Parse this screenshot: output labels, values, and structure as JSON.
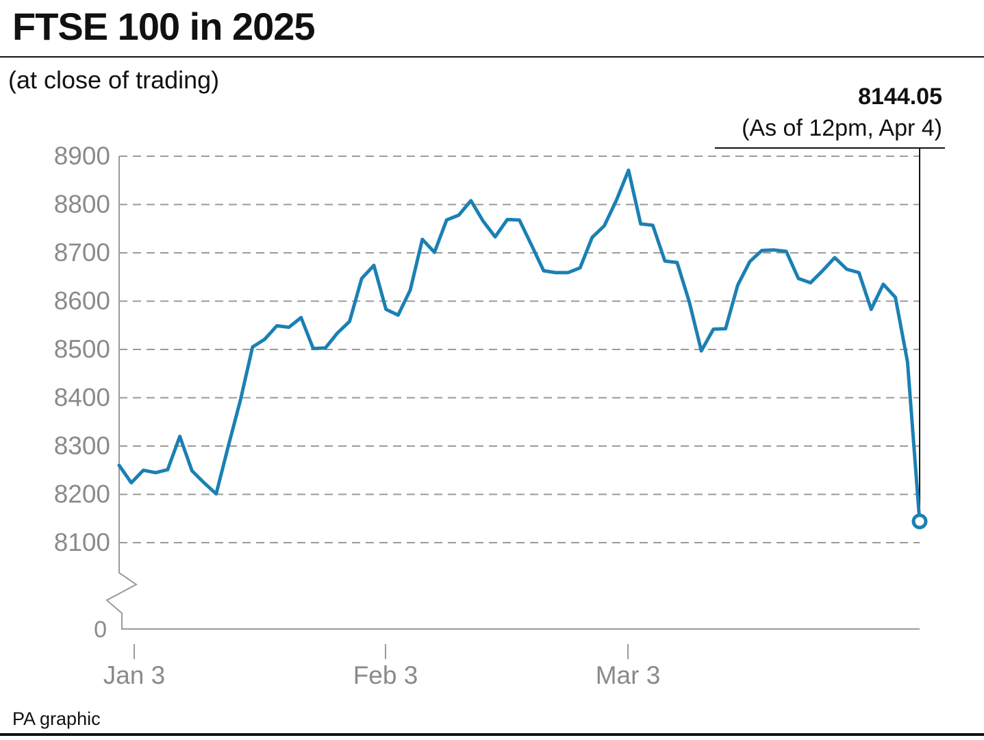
{
  "title": "FTSE 100 in 2025",
  "subtitle": "(at close of trading)",
  "source": "PA graphic",
  "colors": {
    "line": "#1b80b3",
    "grid": "#9a9a9a",
    "axis_text": "#8a8a8a",
    "text": "#111111"
  },
  "chart_data": {
    "type": "line",
    "title": "FTSE 100 in 2025",
    "subtitle": "(at close of trading)",
    "xlabel": "",
    "ylabel": "",
    "ylim": [
      8100,
      8900
    ],
    "y_ticks": [
      "8900",
      "8800",
      "8700",
      "8600",
      "8500",
      "8400",
      "8300",
      "8200",
      "8100"
    ],
    "y_zero_label": "0",
    "axis_break": true,
    "grid": true,
    "x_ticks": [
      "Jan 3",
      "Feb 3",
      "Mar 3"
    ],
    "annotation": {
      "value": "8144.05",
      "note": "(As of 12pm, Apr 4)"
    },
    "series": [
      {
        "values": [
          8260,
          8224,
          8250,
          8245,
          8251,
          8320,
          8249,
          8224,
          8201,
          8300,
          8395,
          8505,
          8521,
          8549,
          8546,
          8566,
          8502,
          8503,
          8534,
          8558,
          8647,
          8674,
          8583,
          8571,
          8623,
          8728,
          8701,
          8768,
          8778,
          8808,
          8766,
          8733,
          8769,
          8768,
          8716,
          8663,
          8659,
          8659,
          8669,
          8732,
          8756,
          8809,
          8871,
          8760,
          8757,
          8683,
          8680,
          8599,
          8497,
          8542,
          8543,
          8633,
          8682,
          8705,
          8706,
          8703,
          8647,
          8638,
          8663,
          8690,
          8666,
          8659,
          8583,
          8635,
          8608,
          8474,
          8144.05
        ]
      }
    ]
  }
}
